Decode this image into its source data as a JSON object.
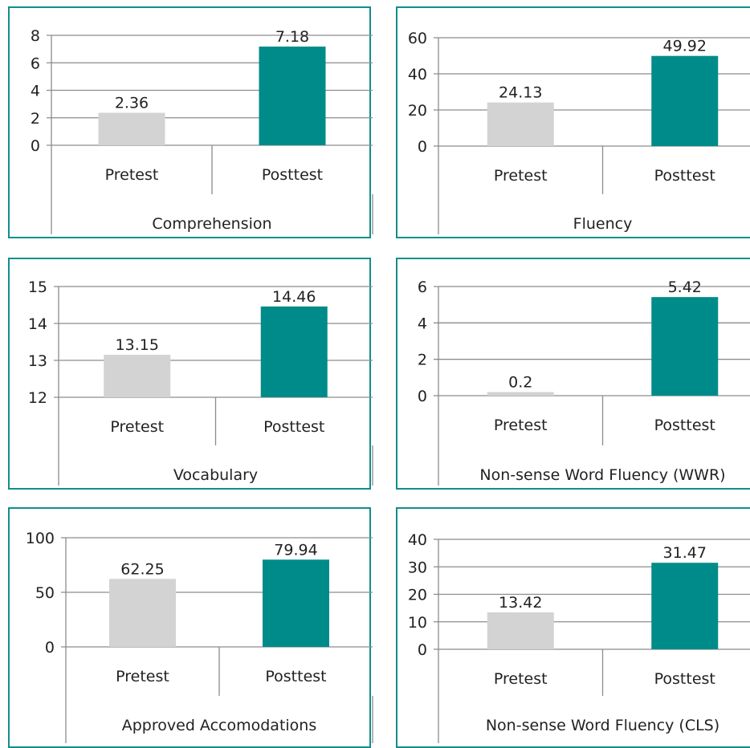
{
  "colors": {
    "pretest": "#d3d3d3",
    "posttest": "#008b8b",
    "frame": "#118e8e",
    "grid": "#8c8c8c"
  },
  "chart_data": [
    {
      "type": "bar",
      "xlabel": "Comprehension",
      "categories": [
        "Pretest",
        "Posttest"
      ],
      "values": [
        2.36,
        7.18
      ],
      "value_labels": [
        "2.36",
        "7.18"
      ],
      "ylim": [
        0,
        8
      ],
      "yticks": [
        "0",
        "2",
        "4",
        "6",
        "8"
      ],
      "grid": true
    },
    {
      "type": "bar",
      "xlabel": "Fluency",
      "categories": [
        "Pretest",
        "Posttest"
      ],
      "values": [
        24.13,
        49.92
      ],
      "value_labels": [
        "24.13",
        "49.92"
      ],
      "ylim": [
        0,
        60
      ],
      "yticks": [
        "0",
        "20",
        "40",
        "60"
      ],
      "grid": true
    },
    {
      "type": "bar",
      "xlabel": "Vocabulary",
      "categories": [
        "Pretest",
        "Posttest"
      ],
      "values": [
        13.15,
        14.46
      ],
      "value_labels": [
        "13.15",
        "14.46"
      ],
      "ylim": [
        12,
        15
      ],
      "yticks": [
        "12",
        "13",
        "14",
        "15"
      ],
      "grid": true
    },
    {
      "type": "bar",
      "xlabel": "Non-sense Word Fluency (WWR)",
      "categories": [
        "Pretest",
        "Posttest"
      ],
      "values": [
        0.2,
        5.42
      ],
      "value_labels": [
        "0.2",
        "5.42"
      ],
      "ylim": [
        0,
        6
      ],
      "yticks": [
        "0",
        "2",
        "4",
        "6"
      ],
      "grid": true
    },
    {
      "type": "bar",
      "xlabel": "Approved Accomodations",
      "categories": [
        "Pretest",
        "Posttest"
      ],
      "values": [
        62.25,
        79.94
      ],
      "value_labels": [
        "62.25",
        "79.94"
      ],
      "ylim": [
        0,
        100
      ],
      "yticks": [
        "0",
        "50",
        "100"
      ],
      "grid": true
    },
    {
      "type": "bar",
      "xlabel": "Non-sense Word Fluency (CLS)",
      "categories": [
        "Pretest",
        "Posttest"
      ],
      "values": [
        13.42,
        31.47
      ],
      "value_labels": [
        "13.42",
        "31.47"
      ],
      "ylim": [
        0,
        40
      ],
      "yticks": [
        "0",
        "10",
        "20",
        "30",
        "40"
      ],
      "grid": true
    }
  ]
}
